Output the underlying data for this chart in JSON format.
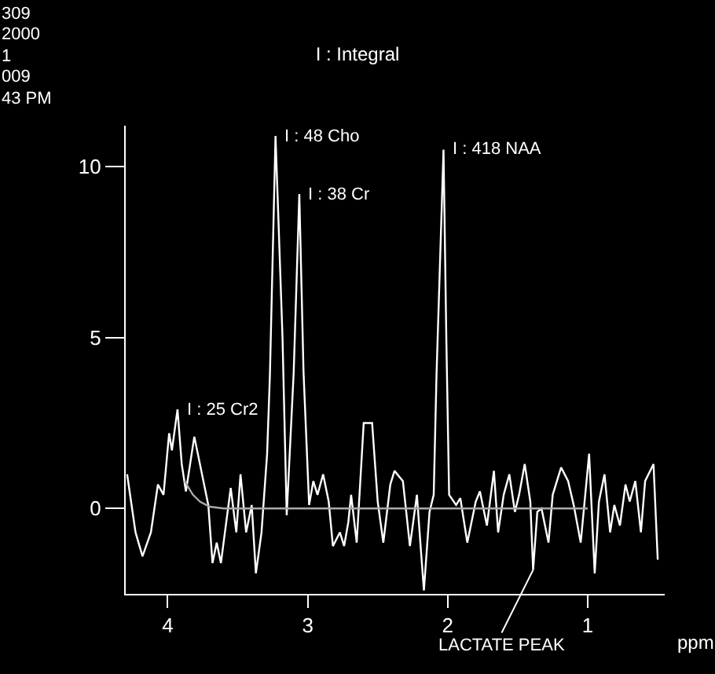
{
  "chart_data": {
    "type": "line",
    "title": "I : Integral",
    "xlabel": "ppm",
    "annotations": [
      "309",
      "2000",
      "1",
      "009",
      "43 PM",
      {
        "text": "I : 48 Cho",
        "x": 3.23,
        "y": 10.9
      },
      {
        "text": "I : 38 Cr",
        "x": 3.06,
        "y": 9.2
      },
      {
        "text": "I : 418 NAA",
        "x": 2.03,
        "y": 10.5
      },
      {
        "text": "I : 25 Cr2",
        "x": 3.93,
        "y": 2.9
      },
      {
        "text": "LACTATE PEAK",
        "x": 1.39,
        "y": -1.8
      }
    ],
    "xlim": [
      4.3,
      0.45
    ],
    "xticks": [
      4,
      3,
      2,
      1
    ],
    "ylim": [
      -2.5,
      11.2
    ],
    "yticks": [
      0,
      5,
      10
    ],
    "grid": false,
    "marker": "none",
    "line_style": "solid",
    "series": [
      {
        "color": "#ffffff",
        "x": [
          4.29,
          4.23,
          4.18,
          4.12,
          4.07,
          4.03,
          3.99,
          3.97,
          3.93,
          3.9,
          3.87,
          3.81,
          3.76,
          3.71,
          3.68,
          3.65,
          3.62,
          3.55,
          3.51,
          3.48,
          3.44,
          3.4,
          3.37,
          3.33,
          3.29,
          3.27,
          3.23,
          3.18,
          3.15,
          3.1,
          3.06,
          3.03,
          2.99,
          2.96,
          2.93,
          2.89,
          2.85,
          2.82,
          2.77,
          2.74,
          2.71,
          2.69,
          2.65,
          2.6,
          2.54,
          2.5,
          2.46,
          2.41,
          2.38,
          2.32,
          2.27,
          2.22,
          2.19,
          2.17,
          2.13,
          2.1,
          2.08,
          2.03,
          2.01,
          1.99,
          1.94,
          1.91,
          1.86,
          1.8,
          1.77,
          1.72,
          1.67,
          1.64,
          1.6,
          1.56,
          1.52,
          1.49,
          1.45,
          1.41,
          1.39,
          1.36,
          1.33,
          1.28,
          1.25,
          1.19,
          1.14,
          1.1,
          1.05,
          0.99,
          0.95,
          0.92,
          0.88,
          0.84,
          0.81,
          0.77,
          0.73,
          0.7,
          0.66,
          0.62,
          0.59,
          0.53,
          0.5
        ],
        "values": [
          1.0,
          -0.7,
          -1.4,
          -0.7,
          0.7,
          0.4,
          2.2,
          1.7,
          2.9,
          1.3,
          0.5,
          2.1,
          1.1,
          0.1,
          -1.6,
          -1.0,
          -1.6,
          0.6,
          -0.7,
          1.0,
          -0.7,
          0.1,
          -1.9,
          -0.7,
          1.6,
          3.9,
          10.9,
          5.0,
          -0.2,
          4.0,
          9.2,
          4.0,
          0.1,
          0.8,
          0.4,
          1.0,
          0.2,
          -1.1,
          -0.7,
          -1.1,
          -0.4,
          0.4,
          -1.0,
          2.5,
          2.5,
          0.2,
          -1.0,
          0.7,
          1.1,
          0.8,
          -1.1,
          0.4,
          -1.3,
          -2.4,
          -0.1,
          0.4,
          3.9,
          10.5,
          5.0,
          0.4,
          0.1,
          0.3,
          -1.0,
          0.2,
          0.5,
          -0.5,
          1.1,
          -0.7,
          0.4,
          1.0,
          -0.1,
          0.4,
          1.3,
          0.2,
          -1.8,
          -0.1,
          0.0,
          -1.0,
          0.4,
          1.2,
          0.8,
          0.1,
          -1.0,
          1.6,
          -1.9,
          0.2,
          1.0,
          -0.7,
          0.1,
          -0.5,
          0.7,
          0.2,
          0.8,
          -0.7,
          0.8,
          1.3,
          -1.5
        ]
      },
      {
        "color": "#aaaaaa",
        "x": [
          3.88,
          3.82,
          3.77,
          3.7,
          3.6,
          1.0
        ],
        "values": [
          0.8,
          0.4,
          0.2,
          0.05,
          0.0,
          0.0
        ]
      }
    ]
  }
}
